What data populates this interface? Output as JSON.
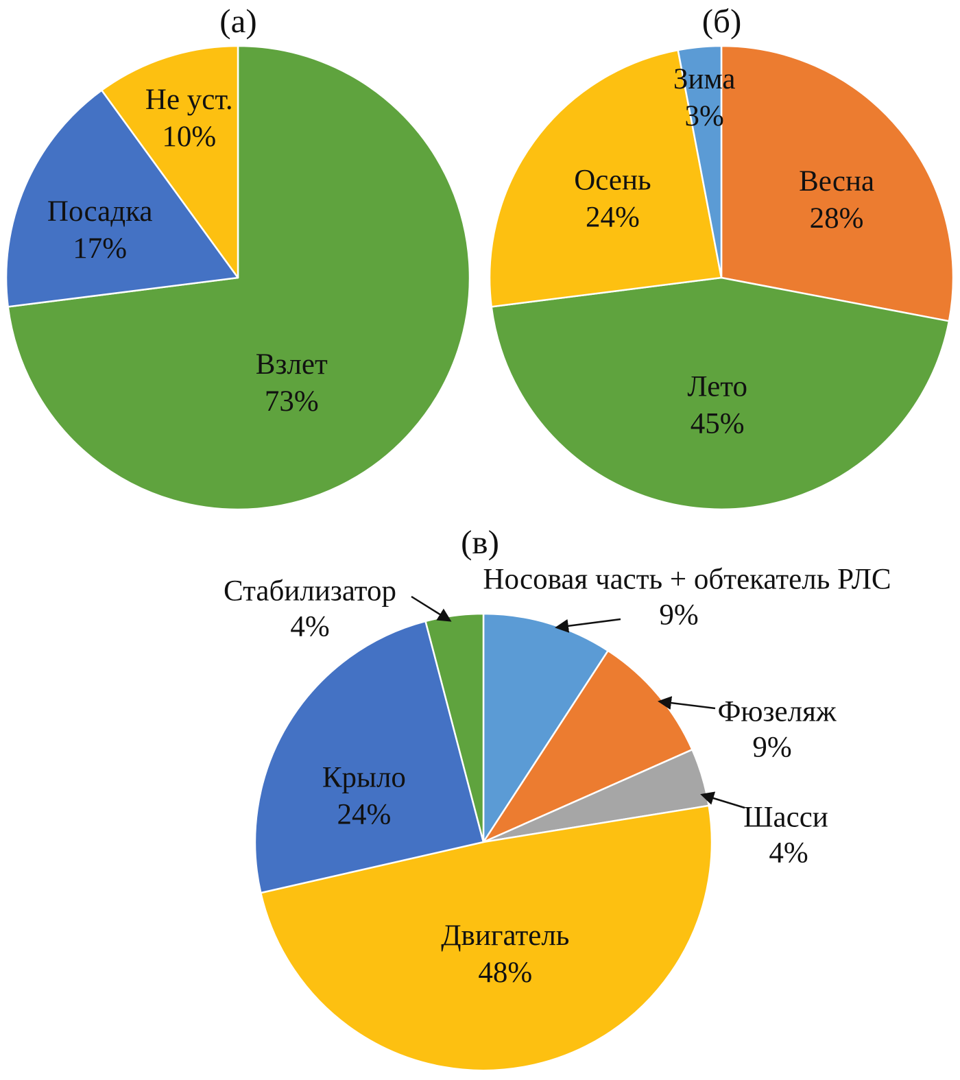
{
  "chart_data": [
    {
      "id": "a",
      "type": "pie",
      "title": "(а)",
      "units": "%",
      "start_angle_deg": 0,
      "direction": "clockwise",
      "slices": [
        {
          "key": "takeoff",
          "label": "Взлет",
          "value": 73,
          "pct_label": "73%",
          "color": "#5fa33e",
          "text_color": "#111111",
          "placement": "inside"
        },
        {
          "key": "landing",
          "label": "Посадка",
          "value": 17,
          "pct_label": "17%",
          "color": "#4472c4",
          "text_color": "#ffffff",
          "placement": "inside"
        },
        {
          "key": "not-established",
          "label": "Не уст.",
          "value": 10,
          "pct_label": "10%",
          "color": "#fdc011",
          "text_color": "#111111",
          "placement": "inside"
        }
      ]
    },
    {
      "id": "b",
      "type": "pie",
      "title": "(б)",
      "units": "%",
      "start_angle_deg": 0,
      "direction": "clockwise",
      "slices": [
        {
          "key": "spring",
          "label": "Весна",
          "value": 28,
          "pct_label": "28%",
          "color": "#ec7c30",
          "text_color": "#111111",
          "placement": "inside"
        },
        {
          "key": "summer",
          "label": "Лето",
          "value": 45,
          "pct_label": "45%",
          "color": "#5fa33e",
          "text_color": "#111111",
          "placement": "inside"
        },
        {
          "key": "autumn",
          "label": "Осень",
          "value": 24,
          "pct_label": "24%",
          "color": "#fdc011",
          "text_color": "#111111",
          "placement": "inside"
        },
        {
          "key": "winter",
          "label": "Зима",
          "value": 3,
          "pct_label": "3%",
          "color": "#5b9bd5",
          "text_color": "#111111",
          "placement": "inside"
        }
      ]
    },
    {
      "id": "v",
      "type": "pie",
      "title": "(в)",
      "units": "%",
      "start_angle_deg": 0,
      "direction": "clockwise",
      "slices": [
        {
          "key": "nose-radome",
          "label": "Носовая часть + обтекатель РЛС",
          "value": 9,
          "pct_label": "9%",
          "color": "#5b9bd5",
          "text_color": "#111111",
          "placement": "outside"
        },
        {
          "key": "fuselage",
          "label": "Фюзеляж",
          "value": 9,
          "pct_label": "9%",
          "color": "#ec7c30",
          "text_color": "#111111",
          "placement": "outside"
        },
        {
          "key": "landing-gear",
          "label": "Шасси",
          "value": 4,
          "pct_label": "4%",
          "color": "#a6a6a6",
          "text_color": "#111111",
          "placement": "outside"
        },
        {
          "key": "engine",
          "label": "Двигатель",
          "value": 48,
          "pct_label": "48%",
          "color": "#fdc011",
          "text_color": "#111111",
          "placement": "inside"
        },
        {
          "key": "wing",
          "label": "Крыло",
          "value": 24,
          "pct_label": "24%",
          "color": "#4472c4",
          "text_color": "#ffffff",
          "placement": "inside"
        },
        {
          "key": "stabilizer",
          "label": "Стабилизатор",
          "value": 4,
          "pct_label": "4%",
          "color": "#5fa33e",
          "text_color": "#111111",
          "placement": "outside"
        }
      ]
    }
  ]
}
